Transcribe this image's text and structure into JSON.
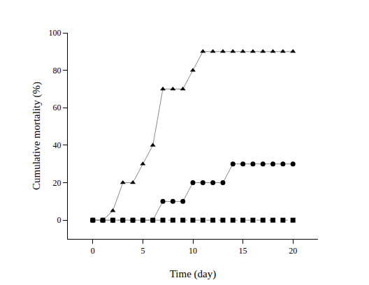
{
  "chart_data": {
    "type": "line",
    "x_label": "Time (day)",
    "y_label": "Cumulative mortality (%)",
    "x": [
      0,
      1,
      2,
      3,
      4,
      5,
      6,
      7,
      8,
      9,
      10,
      11,
      12,
      13,
      14,
      15,
      16,
      17,
      18,
      19,
      20
    ],
    "series": [
      {
        "marker": "triangle-up",
        "line_style": "solid",
        "color": "#000000",
        "values": [
          0,
          0,
          5,
          20,
          20,
          30,
          40,
          70,
          70,
          70,
          80,
          90,
          90,
          90,
          90,
          90,
          90,
          90,
          90,
          90,
          90
        ]
      },
      {
        "marker": "circle",
        "line_style": "solid",
        "color": "#000000",
        "values": [
          0,
          0,
          0,
          0,
          0,
          0,
          0,
          10,
          10,
          10,
          20,
          20,
          20,
          20,
          30,
          30,
          30,
          30,
          30,
          30,
          30
        ]
      },
      {
        "marker": "square",
        "line_style": "dash",
        "color": "#000000",
        "values": [
          0,
          0,
          0,
          0,
          0,
          0,
          0,
          0,
          0,
          0,
          0,
          0,
          0,
          0,
          0,
          0,
          0,
          0,
          0,
          0,
          0
        ]
      }
    ],
    "xlim": [
      -2.5,
      22.5
    ],
    "xticks": [
      0,
      5,
      10,
      15,
      20
    ],
    "ylim": [
      -10,
      100
    ],
    "yticks": [
      0,
      20,
      40,
      60,
      80,
      100
    ],
    "grid": false
  }
}
